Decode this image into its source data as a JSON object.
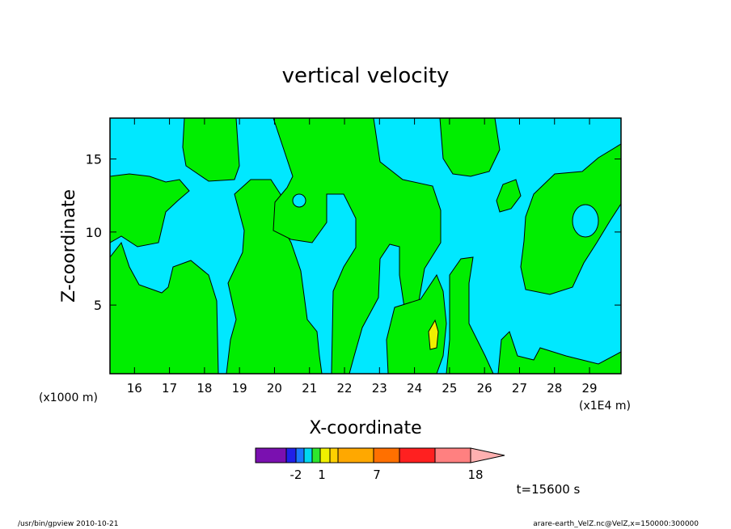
{
  "chart_data": {
    "type": "heatmap",
    "title": "vertical velocity",
    "xlabel": "X-coordinate",
    "ylabel": "Z-coordinate",
    "x_unit_note_left": "(x1000 m)",
    "x_unit_note_right": "(x1E4 m)",
    "xlim": [
      15.3,
      29.9
    ],
    "ylim": [
      0.3,
      17.8
    ],
    "x_ticks": [
      16,
      17,
      18,
      19,
      20,
      21,
      22,
      23,
      24,
      25,
      26,
      27,
      28,
      29
    ],
    "y_ticks": [
      5,
      10,
      15
    ],
    "colorbar": {
      "levels": [
        "-2",
        "1",
        "7",
        "18"
      ],
      "colors": [
        "#7a10b0",
        "#2020e8",
        "#1a78ff",
        "#00d8f0",
        "#2ee62e",
        "#f0f000",
        "#ffd000",
        "#ffa800",
        "#ff7000",
        "#ff2020",
        "#ff8080",
        "#ffb0b0"
      ]
    },
    "fields": {
      "background": "#00e8ff",
      "positive": "#00ee00",
      "strong": "#f0f000"
    },
    "time_label": "t=15600 s"
  },
  "footer": {
    "left": "/usr/bin/gpview   2010-10-21",
    "right": "arare-earth_VelZ.nc@VelZ,x=150000:300000"
  }
}
